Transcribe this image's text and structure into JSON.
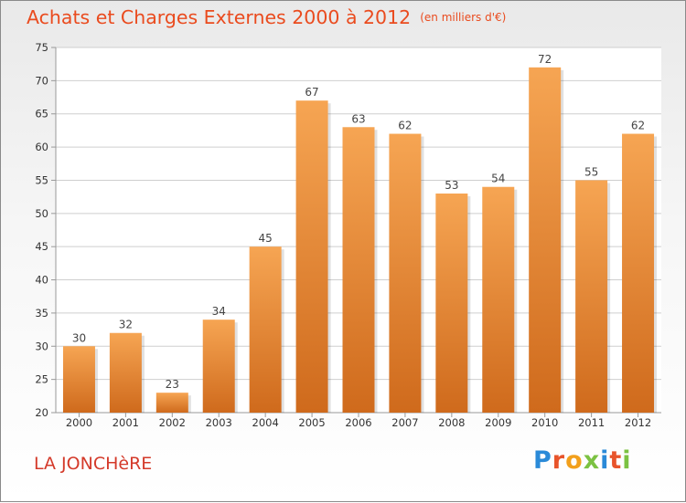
{
  "title": "Achats et Charges Externes 2000 à 2012",
  "subtitle": "(en milliers d'€)",
  "town": "LA JONCHèRE",
  "logo": {
    "letters": [
      "P",
      "r",
      "o",
      "x",
      "i",
      "t",
      "i"
    ],
    "colors": [
      "#2a8ad8",
      "#e8542b",
      "#f2a01c",
      "#7cc242",
      "#2a8ad8",
      "#e8542b",
      "#7cc242"
    ]
  },
  "colors": {
    "title": "#ea4b1e",
    "town": "#d43a2a",
    "bar_top": "#f6a553",
    "bar_bottom": "#cf6a1c",
    "grid": "#cfcfcf",
    "axis": "#999999"
  },
  "chart_data": {
    "type": "bar",
    "categories": [
      "2000",
      "2001",
      "2002",
      "2003",
      "2004",
      "2005",
      "2006",
      "2007",
      "2008",
      "2009",
      "2010",
      "2011",
      "2012"
    ],
    "values": [
      30,
      32,
      23,
      34,
      45,
      67,
      63,
      62,
      53,
      54,
      72,
      55,
      62
    ],
    "data_labels": [
      "30",
      "32",
      "23",
      "34",
      "45",
      "67",
      "63",
      "62",
      "53",
      "54",
      "72",
      "55",
      "62"
    ],
    "ylim": [
      20,
      75
    ],
    "yticks": [
      20,
      25,
      30,
      35,
      40,
      45,
      50,
      55,
      60,
      65,
      70,
      75
    ],
    "grid": true
  }
}
